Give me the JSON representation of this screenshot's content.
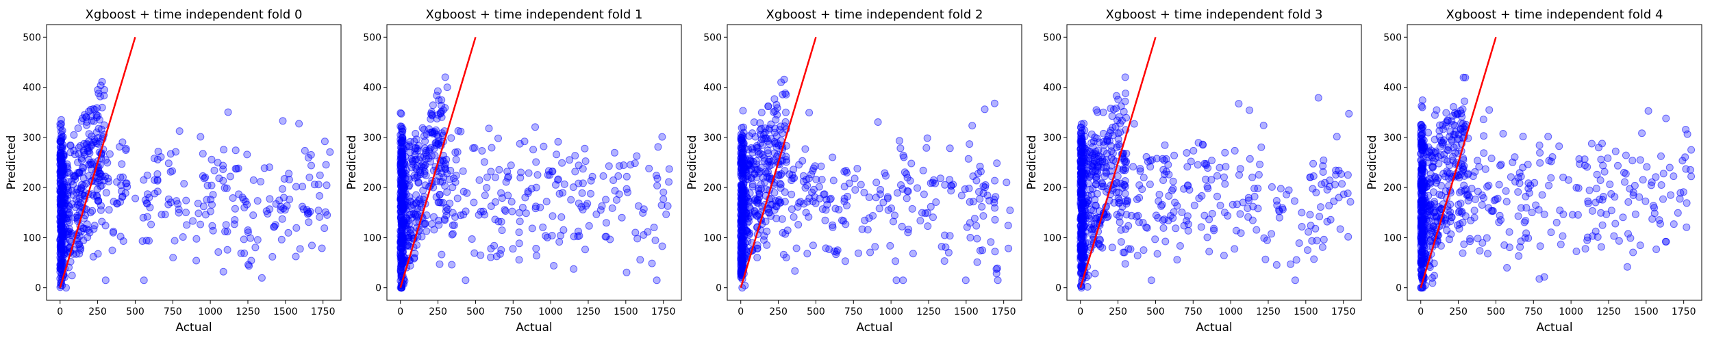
{
  "chart_data": [
    {
      "type": "scatter",
      "title": "Xgboost + time independent fold 0",
      "xlabel": "Actual",
      "ylabel": "Predicted",
      "xlim": [
        -90,
        1870
      ],
      "ylim": [
        -25,
        525
      ],
      "xticks": [
        "0",
        "250",
        "500",
        "750",
        "1000",
        "1250",
        "1500",
        "1750"
      ],
      "yticks": [
        "0",
        "100",
        "200",
        "300",
        "400",
        "500"
      ],
      "grid": false,
      "point_color": "#0000ff",
      "line_color": "#ff0000",
      "reference_line": {
        "x": [
          0,
          500
        ],
        "y": [
          0,
          500
        ]
      },
      "points": {
        "x": [],
        "y": []
      }
    },
    {
      "type": "scatter",
      "title": "Xgboost + time independent fold 1",
      "xlabel": "Actual",
      "ylabel": "Predicted",
      "xlim": [
        -90,
        1870
      ],
      "ylim": [
        -25,
        525
      ],
      "xticks": [
        "0",
        "250",
        "500",
        "750",
        "1000",
        "1250",
        "1500",
        "1750"
      ],
      "yticks": [
        "0",
        "100",
        "200",
        "300",
        "400",
        "500"
      ],
      "grid": false,
      "point_color": "#0000ff",
      "line_color": "#ff0000",
      "reference_line": {
        "x": [
          0,
          500
        ],
        "y": [
          0,
          500
        ]
      },
      "points": {
        "x": [],
        "y": []
      }
    },
    {
      "type": "scatter",
      "title": "Xgboost + time independent fold 2",
      "xlabel": "Actual",
      "ylabel": "Predicted",
      "xlim": [
        -90,
        1870
      ],
      "ylim": [
        -25,
        525
      ],
      "xticks": [
        "0",
        "250",
        "500",
        "750",
        "1000",
        "1250",
        "1500",
        "1750"
      ],
      "yticks": [
        "0",
        "100",
        "200",
        "300",
        "400",
        "500"
      ],
      "grid": false,
      "point_color": "#0000ff",
      "line_color": "#ff0000",
      "reference_line": {
        "x": [
          0,
          500
        ],
        "y": [
          0,
          500
        ]
      },
      "points": {
        "x": [],
        "y": []
      }
    },
    {
      "type": "scatter",
      "title": "Xgboost + time independent fold 3",
      "xlabel": "Actual",
      "ylabel": "Predicted",
      "xlim": [
        -90,
        1870
      ],
      "ylim": [
        -25,
        525
      ],
      "xticks": [
        "0",
        "250",
        "500",
        "750",
        "1000",
        "1250",
        "1500",
        "1750"
      ],
      "yticks": [
        "0",
        "100",
        "200",
        "300",
        "400",
        "500"
      ],
      "grid": false,
      "point_color": "#0000ff",
      "line_color": "#ff0000",
      "reference_line": {
        "x": [
          0,
          500
        ],
        "y": [
          0,
          500
        ]
      },
      "points": {
        "x": [],
        "y": []
      }
    },
    {
      "type": "scatter",
      "title": "Xgboost + time independent fold 4",
      "xlabel": "Actual",
      "ylabel": "Predicted",
      "xlim": [
        -90,
        1870
      ],
      "ylim": [
        -25,
        525
      ],
      "xticks": [
        "0",
        "250",
        "500",
        "750",
        "1000",
        "1250",
        "1500",
        "1750"
      ],
      "yticks": [
        "0",
        "100",
        "200",
        "300",
        "400",
        "500"
      ],
      "grid": false,
      "point_color": "#0000ff",
      "line_color": "#ff0000",
      "reference_line": {
        "x": [
          0,
          500
        ],
        "y": [
          0,
          500
        ]
      },
      "points": {
        "x": [],
        "y": []
      }
    }
  ]
}
